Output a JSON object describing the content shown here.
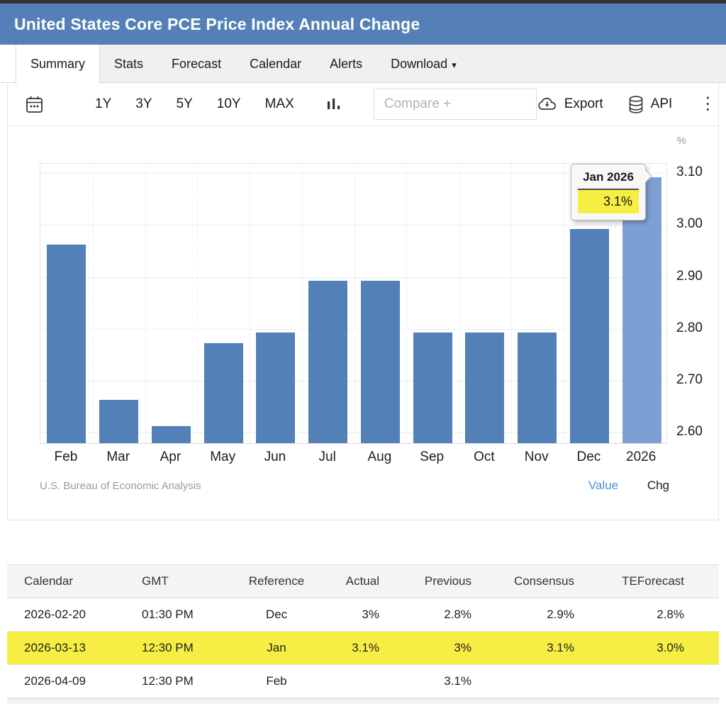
{
  "header": {
    "title": "United States Core PCE Price Index Annual Change",
    "background": "#5480b7"
  },
  "tabs": {
    "items": [
      {
        "label": "Summary",
        "active": true
      },
      {
        "label": "Stats",
        "active": false
      },
      {
        "label": "Forecast",
        "active": false
      },
      {
        "label": "Calendar",
        "active": false
      },
      {
        "label": "Alerts",
        "active": false
      },
      {
        "label": "Download",
        "active": false,
        "has_caret": true
      }
    ],
    "caret_glyph": "▾"
  },
  "toolbar": {
    "ranges": [
      "1Y",
      "3Y",
      "5Y",
      "10Y",
      "MAX"
    ],
    "compare_placeholder": "Compare +",
    "export_label": "Export",
    "api_label": "API",
    "kebab_glyph": "⋮",
    "icons": [
      "calendar-icon",
      "column-chart-icon",
      "cloud-download-icon",
      "database-icon",
      "kebab-menu-icon"
    ]
  },
  "chart_data": {
    "type": "bar",
    "title": "United States Core PCE Price Index Annual Change",
    "unit": "%",
    "categories": [
      "Feb",
      "Mar",
      "Apr",
      "May",
      "Jun",
      "Jul",
      "Aug",
      "Sep",
      "Oct",
      "Nov",
      "Dec",
      "2026"
    ],
    "values": [
      2.96,
      2.66,
      2.61,
      2.77,
      2.79,
      2.89,
      2.89,
      2.79,
      2.79,
      2.79,
      2.99,
      3.09
    ],
    "highlight_index": 11,
    "bar_color": "#5381b7",
    "highlight_bar_color": "#7da0d4",
    "y_ticks": [
      3.1,
      3.0,
      2.9,
      2.8,
      2.7,
      2.6
    ],
    "y_tick_labels": [
      "3.10",
      "3.00",
      "2.90",
      "2.80",
      "2.70",
      "2.60"
    ],
    "ylim": [
      2.577,
      3.118
    ],
    "grid": true,
    "legend_position": "none",
    "tooltip": {
      "title": "Jan 2026",
      "value": "3.1%"
    },
    "source": "U.S. Bureau of Economic Analysis"
  },
  "chart_footer": {
    "source": "U.S. Bureau of Economic Analysis",
    "value_label": "Value",
    "chg_label": "Chg"
  },
  "table": {
    "headers": [
      "Calendar",
      "GMT",
      "Reference",
      "Actual",
      "Previous",
      "Consensus",
      "TEForecast"
    ],
    "rows": [
      {
        "cells": [
          "2026-02-20",
          "01:30 PM",
          "Dec",
          "3%",
          "2.8%",
          "2.9%",
          "2.8%"
        ],
        "highlight": false
      },
      {
        "cells": [
          "2026-03-13",
          "12:30 PM",
          "Jan",
          "3.1%",
          "3%",
          "3.1%",
          "3.0%"
        ],
        "highlight": true
      },
      {
        "cells": [
          "2026-04-09",
          "12:30 PM",
          "Feb",
          "",
          "3.1%",
          "",
          ""
        ],
        "highlight": false
      }
    ],
    "highlight_color": "#f7ee44"
  }
}
